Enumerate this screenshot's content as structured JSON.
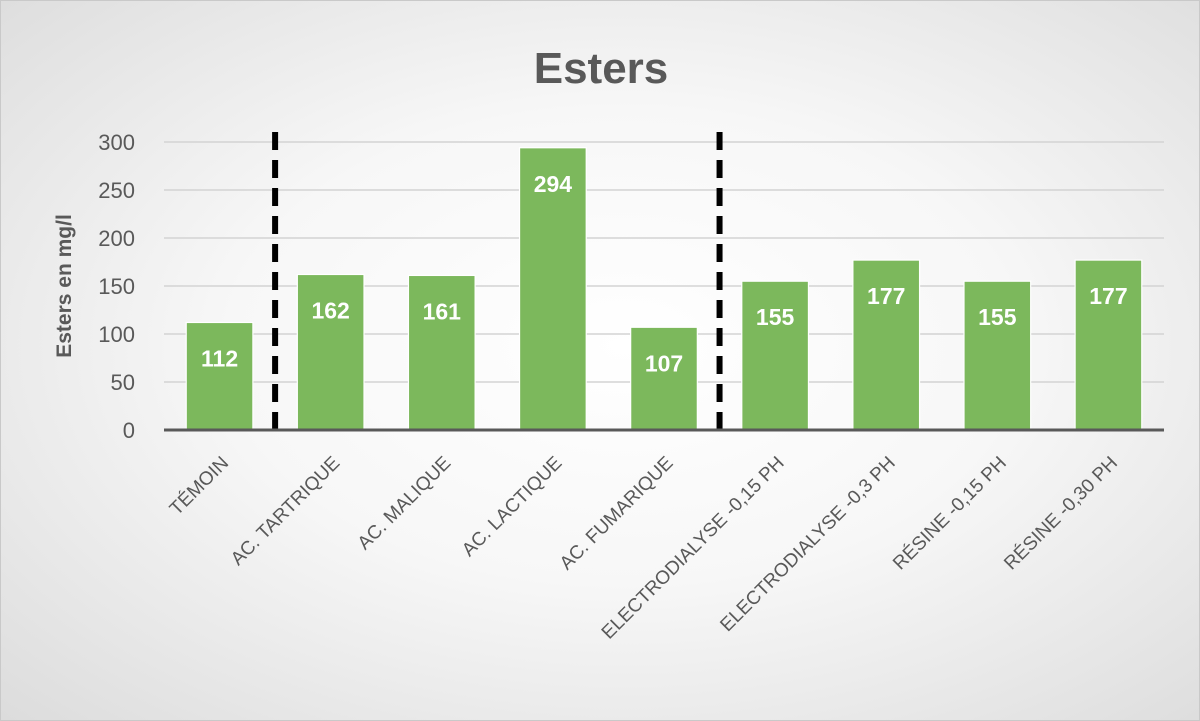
{
  "chart_data": {
    "type": "bar",
    "title": "Esters",
    "xlabel": "",
    "ylabel": "Esters en mg/l",
    "categories": [
      "TÉMOIN",
      "AC. TARTRIQUE",
      "AC. MALIQUE",
      "AC. LACTIQUE",
      "AC. FUMARIQUE",
      "ELECTRODIALYSE -0,15 PH",
      "ELECTRODIALYSE -0,3 PH",
      "RÉSINE -0,15 PH",
      "RÉSINE -0,30 PH"
    ],
    "values": [
      112,
      162,
      161,
      294,
      107,
      155,
      177,
      155,
      177
    ],
    "data_labels": [
      "112",
      "162",
      "161",
      "294",
      "107",
      "155",
      "177",
      "155",
      "177"
    ],
    "ylim": [
      0,
      300
    ],
    "yticks": [
      0,
      50,
      100,
      150,
      200,
      250,
      300
    ],
    "grid": true,
    "legend": "none",
    "separators_after_category_index": [
      0,
      4
    ],
    "colors": {
      "bar": "#7cb85c",
      "gridline": "#d3d3d3",
      "axis": "#595959",
      "separator": "#000000"
    }
  }
}
